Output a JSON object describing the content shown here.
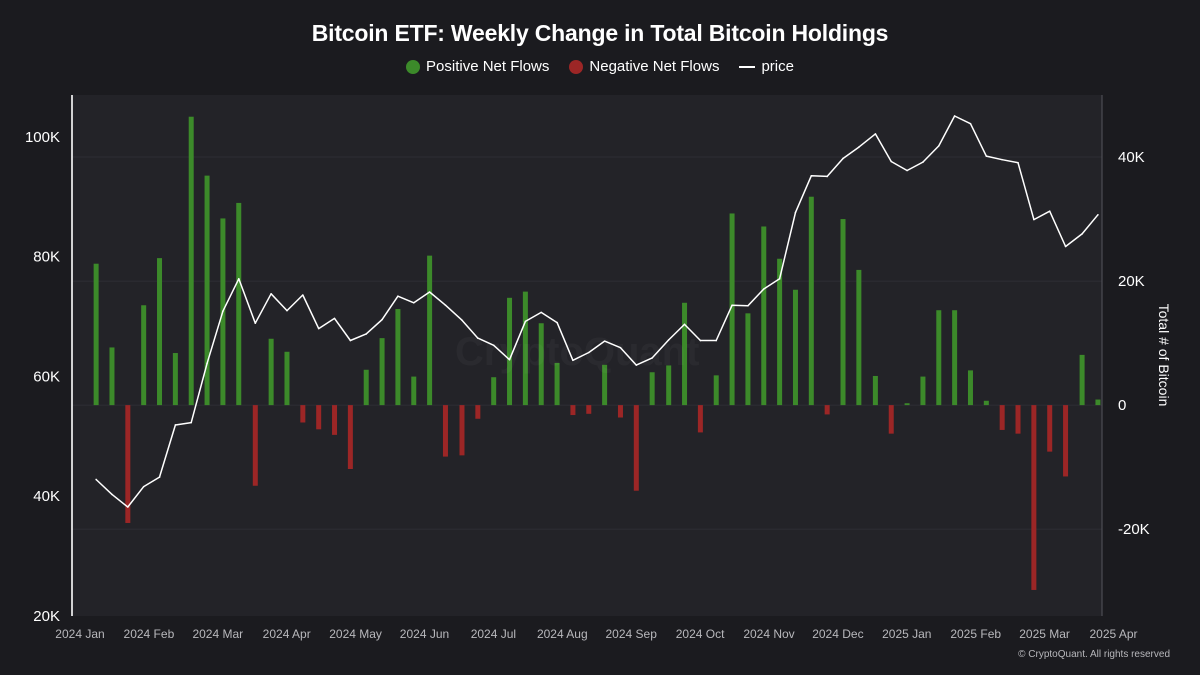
{
  "colors": {
    "background": "#1b1b1f",
    "plot_background": "#232328",
    "positive": "#3c8a2a",
    "negative": "#9c2626",
    "price_line": "#ffffff",
    "grid": "#2e2e34"
  },
  "legend": {
    "positive": "Positive Net Flows",
    "negative": "Negative Net Flows",
    "price": "price"
  },
  "watermark": "CryptoQuant",
  "copyright": "© CryptoQuant. All rights reserved",
  "chart_data": {
    "type": "bar",
    "title": "Bitcoin ETF: Weekly Change in Total Bitcoin Holdings",
    "xlabel": "",
    "ylabel": "",
    "y2label": "Total # of Bitcoin",
    "x_ticks": [
      "2024 Jan",
      "2024 Feb",
      "2024 Mar",
      "2024 Apr",
      "2024 May",
      "2024 Jun",
      "2024 Jul",
      "2024 Aug",
      "2024 Sep",
      "2024 Oct",
      "2024 Nov",
      "2024 Dec",
      "2025 Jan",
      "2025 Feb",
      "2025 Mar",
      "2025 Apr"
    ],
    "x_range_months": [
      0,
      15
    ],
    "price_axis": {
      "min": 20000,
      "max": 107000,
      "ticks": [
        20000,
        40000,
        60000,
        80000,
        100000
      ],
      "tick_labels": [
        "20K",
        "40K",
        "60K",
        "80K",
        "100K"
      ]
    },
    "flow_axis": {
      "min": -34000,
      "max": 50000,
      "ticks": [
        -20000,
        0,
        20000,
        40000
      ],
      "tick_labels": [
        "-20K",
        "0",
        "20K",
        "40K"
      ]
    },
    "flows": [
      {
        "t": 0.06,
        "v": 22800
      },
      {
        "t": 0.29,
        "v": 9300
      },
      {
        "t": 0.52,
        "v": -19000
      },
      {
        "t": 0.75,
        "v": 16100
      },
      {
        "t": 0.98,
        "v": 23700
      },
      {
        "t": 1.21,
        "v": 8400
      },
      {
        "t": 1.44,
        "v": 46500
      },
      {
        "t": 1.67,
        "v": 37000
      },
      {
        "t": 1.9,
        "v": 30100
      },
      {
        "t": 2.13,
        "v": 32600
      },
      {
        "t": 2.37,
        "v": -13000
      },
      {
        "t": 2.6,
        "v": 10700
      },
      {
        "t": 2.83,
        "v": 8600
      },
      {
        "t": 3.06,
        "v": -2800
      },
      {
        "t": 3.29,
        "v": -3900
      },
      {
        "t": 3.52,
        "v": -4800
      },
      {
        "t": 3.75,
        "v": -10300
      },
      {
        "t": 3.98,
        "v": 5700
      },
      {
        "t": 4.21,
        "v": 10800
      },
      {
        "t": 4.44,
        "v": 15500
      },
      {
        "t": 4.67,
        "v": 4600
      },
      {
        "t": 4.9,
        "v": 24100
      },
      {
        "t": 5.13,
        "v": -8300
      },
      {
        "t": 5.37,
        "v": -8100
      },
      {
        "t": 5.6,
        "v": -2200
      },
      {
        "t": 5.83,
        "v": 4500
      },
      {
        "t": 6.06,
        "v": 17300
      },
      {
        "t": 6.29,
        "v": 18300
      },
      {
        "t": 6.52,
        "v": 13200
      },
      {
        "t": 6.75,
        "v": 6800
      },
      {
        "t": 6.98,
        "v": -1600
      },
      {
        "t": 7.21,
        "v": -1400
      },
      {
        "t": 7.44,
        "v": 6500
      },
      {
        "t": 7.67,
        "v": -2000
      },
      {
        "t": 7.9,
        "v": -13800
      },
      {
        "t": 8.13,
        "v": 5300
      },
      {
        "t": 8.37,
        "v": 6400
      },
      {
        "t": 8.6,
        "v": 16500
      },
      {
        "t": 8.83,
        "v": -4400
      },
      {
        "t": 9.06,
        "v": 4800
      },
      {
        "t": 9.29,
        "v": 30900
      },
      {
        "t": 9.52,
        "v": 14800
      },
      {
        "t": 9.75,
        "v": 28800
      },
      {
        "t": 9.98,
        "v": 23600
      },
      {
        "t": 10.21,
        "v": 18600
      },
      {
        "t": 10.44,
        "v": 33600
      },
      {
        "t": 10.67,
        "v": -1500
      },
      {
        "t": 10.9,
        "v": 30000
      },
      {
        "t": 11.13,
        "v": 21800
      },
      {
        "t": 11.37,
        "v": 4700
      },
      {
        "t": 11.6,
        "v": -4600
      },
      {
        "t": 11.83,
        "v": 300
      },
      {
        "t": 12.06,
        "v": 4600
      },
      {
        "t": 12.29,
        "v": 15300
      },
      {
        "t": 12.52,
        "v": 15300
      },
      {
        "t": 12.75,
        "v": 5600
      },
      {
        "t": 12.98,
        "v": 700
      },
      {
        "t": 13.21,
        "v": -4000
      },
      {
        "t": 13.44,
        "v": -4600
      },
      {
        "t": 13.67,
        "v": -29800
      },
      {
        "t": 13.9,
        "v": -7500
      },
      {
        "t": 14.13,
        "v": -11500
      },
      {
        "t": 14.37,
        "v": 8100
      },
      {
        "t": 14.6,
        "v": 900
      }
    ],
    "price": [
      {
        "t": 0.06,
        "v": 42800
      },
      {
        "t": 0.29,
        "v": 40300
      },
      {
        "t": 0.52,
        "v": 38200
      },
      {
        "t": 0.75,
        "v": 41600
      },
      {
        "t": 0.98,
        "v": 43200
      },
      {
        "t": 1.21,
        "v": 51900
      },
      {
        "t": 1.44,
        "v": 52300
      },
      {
        "t": 1.67,
        "v": 62200
      },
      {
        "t": 1.9,
        "v": 70900
      },
      {
        "t": 2.13,
        "v": 76300
      },
      {
        "t": 2.37,
        "v": 68900
      },
      {
        "t": 2.6,
        "v": 73800
      },
      {
        "t": 2.83,
        "v": 71000
      },
      {
        "t": 3.06,
        "v": 73600
      },
      {
        "t": 3.29,
        "v": 68000
      },
      {
        "t": 3.52,
        "v": 69700
      },
      {
        "t": 3.75,
        "v": 66000
      },
      {
        "t": 3.98,
        "v": 67100
      },
      {
        "t": 4.21,
        "v": 69500
      },
      {
        "t": 4.44,
        "v": 73400
      },
      {
        "t": 4.67,
        "v": 72300
      },
      {
        "t": 4.9,
        "v": 74100
      },
      {
        "t": 5.13,
        "v": 71900
      },
      {
        "t": 5.37,
        "v": 69400
      },
      {
        "t": 5.6,
        "v": 66400
      },
      {
        "t": 5.83,
        "v": 65200
      },
      {
        "t": 6.06,
        "v": 62800
      },
      {
        "t": 6.29,
        "v": 69200
      },
      {
        "t": 6.52,
        "v": 70700
      },
      {
        "t": 6.75,
        "v": 69000
      },
      {
        "t": 6.98,
        "v": 62700
      },
      {
        "t": 7.21,
        "v": 64000
      },
      {
        "t": 7.44,
        "v": 65900
      },
      {
        "t": 7.67,
        "v": 64800
      },
      {
        "t": 7.9,
        "v": 61900
      },
      {
        "t": 8.13,
        "v": 63100
      },
      {
        "t": 8.37,
        "v": 66100
      },
      {
        "t": 8.6,
        "v": 68700
      },
      {
        "t": 8.83,
        "v": 66000
      },
      {
        "t": 9.06,
        "v": 66000
      },
      {
        "t": 9.29,
        "v": 71900
      },
      {
        "t": 9.52,
        "v": 71800
      },
      {
        "t": 9.75,
        "v": 74600
      },
      {
        "t": 9.98,
        "v": 76300
      },
      {
        "t": 10.21,
        "v": 87400
      },
      {
        "t": 10.44,
        "v": 93500
      },
      {
        "t": 10.67,
        "v": 93400
      },
      {
        "t": 10.9,
        "v": 96400
      },
      {
        "t": 11.13,
        "v": 98300
      },
      {
        "t": 11.37,
        "v": 100500
      },
      {
        "t": 11.6,
        "v": 95900
      },
      {
        "t": 11.83,
        "v": 94400
      },
      {
        "t": 12.06,
        "v": 95800
      },
      {
        "t": 12.29,
        "v": 98500
      },
      {
        "t": 12.52,
        "v": 103500
      },
      {
        "t": 12.75,
        "v": 102200
      },
      {
        "t": 12.98,
        "v": 96800
      },
      {
        "t": 13.21,
        "v": 96200
      },
      {
        "t": 13.44,
        "v": 95700
      },
      {
        "t": 13.67,
        "v": 86200
      },
      {
        "t": 13.9,
        "v": 87600
      },
      {
        "t": 14.13,
        "v": 81700
      },
      {
        "t": 14.37,
        "v": 83800
      },
      {
        "t": 14.6,
        "v": 87000
      }
    ]
  }
}
